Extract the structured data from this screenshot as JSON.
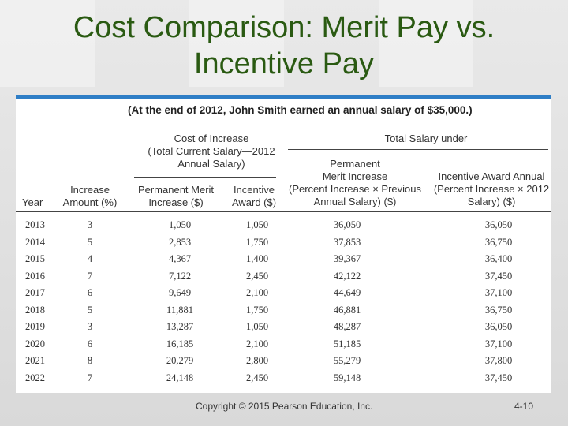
{
  "slide": {
    "title_line1": "Cost Comparison:  Merit Pay vs.",
    "title_line2": "Incentive Pay"
  },
  "table": {
    "caption": "(At the end of 2012, John Smith earned an annual salary of $35,000.)",
    "group_headers": {
      "cost_of_increase": [
        "Cost of Increase",
        "(Total Current Salary—2012",
        "Annual Salary)"
      ],
      "total_salary_under": "Total Salary under"
    },
    "columns": {
      "year": "Year",
      "increase_amount": [
        "Increase",
        "Amount (%)"
      ],
      "permanent_merit_increase": [
        "Permanent Merit",
        "Increase ($)"
      ],
      "incentive_award": [
        "Incentive",
        "Award ($)"
      ],
      "total_permanent_merit": [
        "Permanent",
        "Merit Increase",
        "(Percent Increase × Previous",
        "Annual Salary) ($)"
      ],
      "total_incentive_award": [
        "Incentive Award Annual",
        "(Percent Increase × 2012",
        "Salary) ($)"
      ]
    },
    "rows": [
      [
        "2013",
        "3",
        "1,050",
        "1,050",
        "36,050",
        "36,050"
      ],
      [
        "2014",
        "5",
        "2,853",
        "1,750",
        "37,853",
        "36,750"
      ],
      [
        "2015",
        "4",
        "4,367",
        "1,400",
        "39,367",
        "36,400"
      ],
      [
        "2016",
        "7",
        "7,122",
        "2,450",
        "42,122",
        "37,450"
      ],
      [
        "2017",
        "6",
        "9,649",
        "2,100",
        "44,649",
        "37,100"
      ],
      [
        "2018",
        "5",
        "11,881",
        "1,750",
        "46,881",
        "36,750"
      ],
      [
        "2019",
        "3",
        "13,287",
        "1,050",
        "48,287",
        "36,050"
      ],
      [
        "2020",
        "6",
        "16,185",
        "2,100",
        "51,185",
        "37,100"
      ],
      [
        "2021",
        "8",
        "20,279",
        "2,800",
        "55,279",
        "37,800"
      ],
      [
        "2022",
        "7",
        "24,148",
        "2,450",
        "59,148",
        "37,450"
      ]
    ]
  },
  "footer": {
    "copyright": "Copyright © 2015 Pearson Education, Inc.",
    "slide_number": "4-10"
  },
  "colors": {
    "title": "#2a5a12",
    "accent_bar": "#2f7ec6"
  }
}
